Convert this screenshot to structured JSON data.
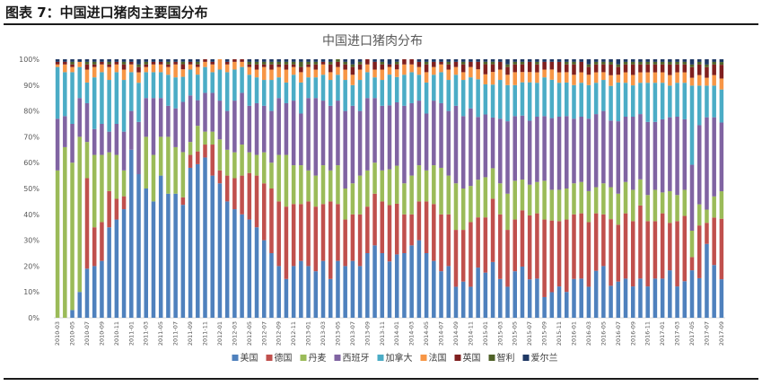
{
  "header": {
    "title": "图表 7：中国进口猪肉主要国分布"
  },
  "chart_data": {
    "type": "bar",
    "stacked": true,
    "title": "中国进口猪肉分布",
    "ylim": [
      0,
      100
    ],
    "y_ticks": [
      "0%",
      "10%",
      "20%",
      "30%",
      "40%",
      "50%",
      "60%",
      "70%",
      "80%",
      "90%",
      "100%"
    ],
    "grid": false,
    "legend_position": "bottom",
    "start_month": "2010-03",
    "month_count": 91,
    "x_tick_step": 2,
    "x_ticks": [
      "2010-03",
      "2010-05",
      "2010-07",
      "2010-09",
      "2010-11",
      "2011-01",
      "2011-03",
      "2011-05",
      "2011-07",
      "2011-09",
      "2011-11",
      "2012-01",
      "2012-03",
      "2012-05",
      "2012-07",
      "2012-09",
      "2012-11",
      "2013-01",
      "2013-03",
      "2013-05",
      "2013-07",
      "2013-09",
      "2013-11",
      "2014-01",
      "2014-03",
      "2014-05",
      "2014-07",
      "2014-09",
      "2014-11",
      "2015-01",
      "2015-03",
      "2015-05",
      "2015-07",
      "2015-09",
      "2015-11",
      "2016-01",
      "2016-03",
      "2016-05",
      "2016-07",
      "2016-09",
      "2016-11",
      "2017-01",
      "2017-03",
      "2017-05",
      "2017-07",
      "2017-09"
    ],
    "series": [
      {
        "name": "美国",
        "color": "#4f81bd",
        "values": [
          0,
          0,
          3,
          10,
          19,
          20,
          22,
          35,
          38,
          42,
          65,
          55,
          50,
          45,
          55,
          48,
          48,
          45,
          58,
          60,
          62,
          55,
          52,
          45,
          42,
          40,
          38,
          35,
          30,
          25,
          20,
          15,
          20,
          22,
          20,
          18,
          22,
          15,
          22,
          20,
          22,
          20,
          25,
          28,
          25,
          22,
          25,
          25,
          28,
          30,
          25,
          22,
          18,
          20,
          12,
          14,
          12,
          20,
          18,
          22,
          15,
          12,
          18,
          20,
          15,
          15,
          8,
          10,
          12,
          10,
          15,
          15,
          12,
          18,
          20,
          12,
          14,
          15,
          12,
          15,
          12,
          15,
          15,
          18,
          12,
          14,
          18,
          15,
          28,
          20,
          14
        ]
      },
      {
        "name": "德国",
        "color": "#c0504d",
        "values": [
          0,
          0,
          0,
          0,
          35,
          15,
          15,
          14,
          8,
          5,
          0,
          0,
          0,
          0,
          0,
          0,
          0,
          3,
          5,
          5,
          5,
          12,
          5,
          10,
          12,
          15,
          18,
          20,
          22,
          25,
          25,
          28,
          24,
          22,
          25,
          25,
          22,
          30,
          22,
          18,
          18,
          20,
          18,
          20,
          20,
          22,
          20,
          15,
          12,
          15,
          20,
          22,
          22,
          20,
          22,
          20,
          25,
          20,
          22,
          25,
          25,
          22,
          20,
          22,
          25,
          25,
          30,
          28,
          25,
          28,
          25,
          25,
          25,
          22,
          20,
          25,
          22,
          25,
          25,
          28,
          25,
          22,
          25,
          18,
          25,
          25,
          5,
          20,
          8,
          18,
          22
        ]
      },
      {
        "name": "丹麦",
        "color": "#9bbb59",
        "values": [
          57,
          66,
          57,
          60,
          14,
          28,
          26,
          15,
          17,
          10,
          0,
          0,
          20,
          18,
          15,
          22,
          18,
          18,
          5,
          10,
          5,
          5,
          12,
          10,
          10,
          12,
          8,
          8,
          12,
          10,
          18,
          20,
          15,
          15,
          12,
          12,
          15,
          12,
          15,
          12,
          12,
          15,
          14,
          12,
          12,
          14,
          15,
          12,
          15,
          14,
          12,
          15,
          18,
          15,
          18,
          16,
          14,
          15,
          16,
          12,
          12,
          14,
          15,
          12,
          12,
          12,
          15,
          12,
          12,
          12,
          12,
          12,
          12,
          10,
          12,
          12,
          12,
          12,
          12,
          10,
          10,
          12,
          8,
          12,
          10,
          10,
          10,
          8,
          5,
          8,
          10
        ]
      },
      {
        "name": "西班牙",
        "color": "#8064a2",
        "values": [
          20,
          12,
          15,
          15,
          15,
          10,
          12,
          8,
          12,
          15,
          15,
          20,
          15,
          22,
          15,
          12,
          15,
          20,
          18,
          10,
          15,
          15,
          15,
          15,
          20,
          20,
          18,
          20,
          18,
          20,
          22,
          20,
          25,
          20,
          28,
          30,
          25,
          25,
          25,
          30,
          30,
          25,
          28,
          25,
          25,
          25,
          25,
          30,
          28,
          25,
          22,
          25,
          25,
          25,
          30,
          28,
          30,
          25,
          25,
          20,
          25,
          28,
          25,
          25,
          25,
          25,
          25,
          28,
          28,
          28,
          25,
          25,
          28,
          28,
          28,
          25,
          28,
          25,
          28,
          25,
          28,
          26,
          28,
          28,
          30,
          27,
          25,
          30,
          35,
          30,
          25
        ]
      },
      {
        "name": "加拿大",
        "color": "#4bacc6",
        "values": [
          20,
          17,
          20,
          12,
          8,
          20,
          20,
          20,
          20,
          20,
          15,
          15,
          10,
          10,
          10,
          12,
          12,
          10,
          10,
          10,
          10,
          8,
          12,
          15,
          12,
          10,
          12,
          10,
          10,
          12,
          8,
          8,
          10,
          12,
          8,
          8,
          10,
          10,
          10,
          12,
          8,
          12,
          10,
          8,
          10,
          12,
          10,
          12,
          12,
          10,
          12,
          10,
          12,
          12,
          12,
          14,
          12,
          15,
          12,
          13,
          15,
          14,
          12,
          13,
          15,
          13,
          15,
          15,
          13,
          13,
          13,
          13,
          13,
          12,
          12,
          13,
          15,
          13,
          12,
          12,
          15,
          15,
          14,
          12,
          13,
          14,
          30,
          15,
          12,
          12,
          12
        ]
      },
      {
        "name": "法国",
        "color": "#f79646",
        "values": [
          1,
          3,
          2,
          2,
          5,
          4,
          3,
          5,
          3,
          4,
          3,
          4,
          2,
          3,
          3,
          3,
          5,
          3,
          2,
          3,
          2,
          3,
          4,
          3,
          3,
          2,
          3,
          3,
          5,
          4,
          4,
          5,
          3,
          4,
          4,
          3,
          4,
          3,
          3,
          4,
          4,
          4,
          3,
          3,
          4,
          3,
          3,
          4,
          3,
          3,
          4,
          3,
          3,
          4,
          3,
          3,
          4,
          4,
          4,
          5,
          4,
          4,
          5,
          4,
          4,
          4,
          3,
          4,
          4,
          4,
          4,
          4,
          4,
          4,
          3,
          4,
          3,
          4,
          4,
          4,
          4,
          4,
          4,
          4,
          4,
          4,
          3,
          4,
          3,
          4,
          4
        ]
      },
      {
        "name": "英国",
        "color": "#7f1f1f",
        "values": [
          1,
          1,
          1,
          0,
          2,
          1,
          1,
          1,
          1,
          2,
          1,
          2,
          1,
          1,
          1,
          1,
          1,
          2,
          1,
          1,
          1,
          1,
          0,
          1,
          1,
          1,
          1,
          2,
          1,
          2,
          1,
          2,
          1,
          2,
          1,
          2,
          1,
          3,
          2,
          2,
          3,
          2,
          2,
          3,
          2,
          1,
          2,
          2,
          2,
          2,
          3,
          2,
          1,
          2,
          2,
          3,
          2,
          3,
          4,
          3,
          3,
          3,
          3,
          3,
          4,
          3,
          3,
          3,
          4,
          3,
          4,
          4,
          3,
          3,
          3,
          4,
          3,
          3,
          4,
          3,
          3,
          3,
          3,
          4,
          3,
          3,
          4,
          4,
          4,
          4,
          5
        ]
      },
      {
        "name": "智利",
        "color": "#4f6228",
        "values": [
          0,
          0,
          1,
          0,
          1,
          1,
          0,
          1,
          0,
          1,
          0,
          1,
          1,
          0,
          0,
          1,
          0,
          1,
          0,
          1,
          0,
          0,
          0,
          0,
          0,
          0,
          1,
          1,
          1,
          1,
          1,
          1,
          1,
          2,
          1,
          1,
          0,
          1,
          1,
          1,
          1,
          1,
          0,
          0,
          1,
          0,
          1,
          0,
          0,
          0,
          1,
          0,
          0,
          1,
          0,
          1,
          0,
          0,
          1,
          1,
          0,
          1,
          1,
          1,
          0,
          1,
          0,
          0,
          0,
          1,
          1,
          0,
          1,
          1,
          1,
          1,
          1,
          1,
          1,
          1,
          1,
          1,
          1,
          1,
          1,
          1,
          1,
          1,
          1,
          1,
          1
        ]
      },
      {
        "name": "爱尔兰",
        "color": "#1f3864",
        "values": [
          1,
          1,
          1,
          1,
          1,
          1,
          1,
          1,
          1,
          1,
          1,
          2,
          1,
          1,
          1,
          1,
          1,
          1,
          1,
          1,
          0,
          1,
          0,
          1,
          0,
          0,
          1,
          1,
          1,
          1,
          1,
          1,
          1,
          1,
          1,
          1,
          1,
          1,
          0,
          1,
          2,
          1,
          0,
          1,
          1,
          2,
          1,
          0,
          0,
          1,
          1,
          1,
          1,
          1,
          1,
          1,
          1,
          1,
          1,
          1,
          1,
          2,
          1,
          1,
          1,
          1,
          1,
          1,
          1,
          1,
          1,
          1,
          2,
          1,
          1,
          1,
          2,
          1,
          1,
          1,
          1,
          1,
          1,
          1,
          1,
          1,
          2,
          1,
          2,
          1,
          1
        ]
      }
    ]
  }
}
